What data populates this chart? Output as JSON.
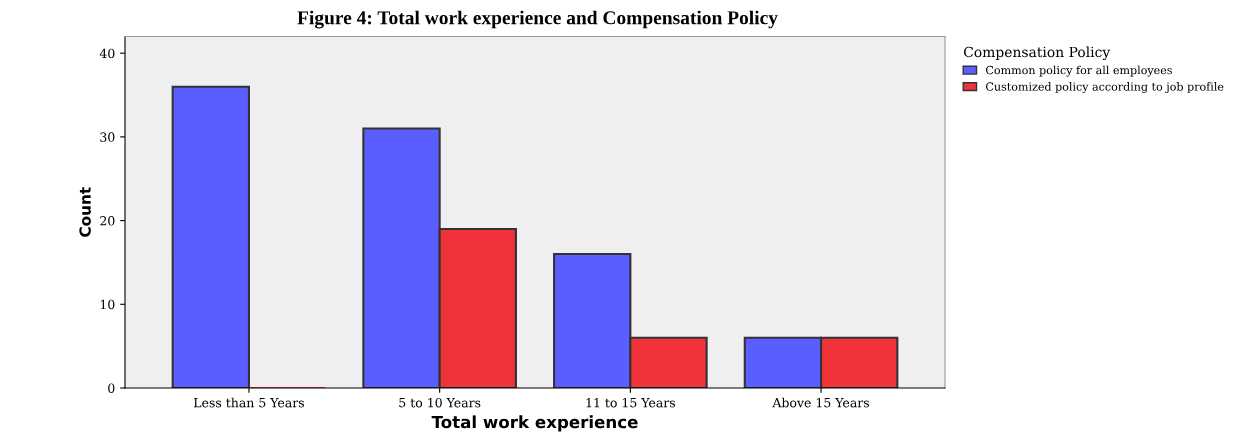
{
  "chart_data": {
    "type": "bar",
    "title": "Figure 4: Total work experience and Compensation Policy",
    "xlabel": "Total work experience",
    "ylabel": "Count",
    "legend_title": "Compensation Policy",
    "categories": [
      "Less than 5 Years",
      "5 to 10 Years",
      "11 to 15 Years",
      "Above 15 Years"
    ],
    "series": [
      {
        "name": "Common policy for all employees",
        "color": "#5a5eff",
        "values": [
          36,
          31,
          16,
          6
        ]
      },
      {
        "name": "Customized policy according to job profile",
        "color": "#f0323a",
        "values": [
          0,
          19,
          6,
          6
        ]
      }
    ],
    "ylim": [
      0,
      42
    ],
    "yticks": [
      0,
      10,
      20,
      30,
      40
    ],
    "grid": false,
    "legend": "top right"
  }
}
